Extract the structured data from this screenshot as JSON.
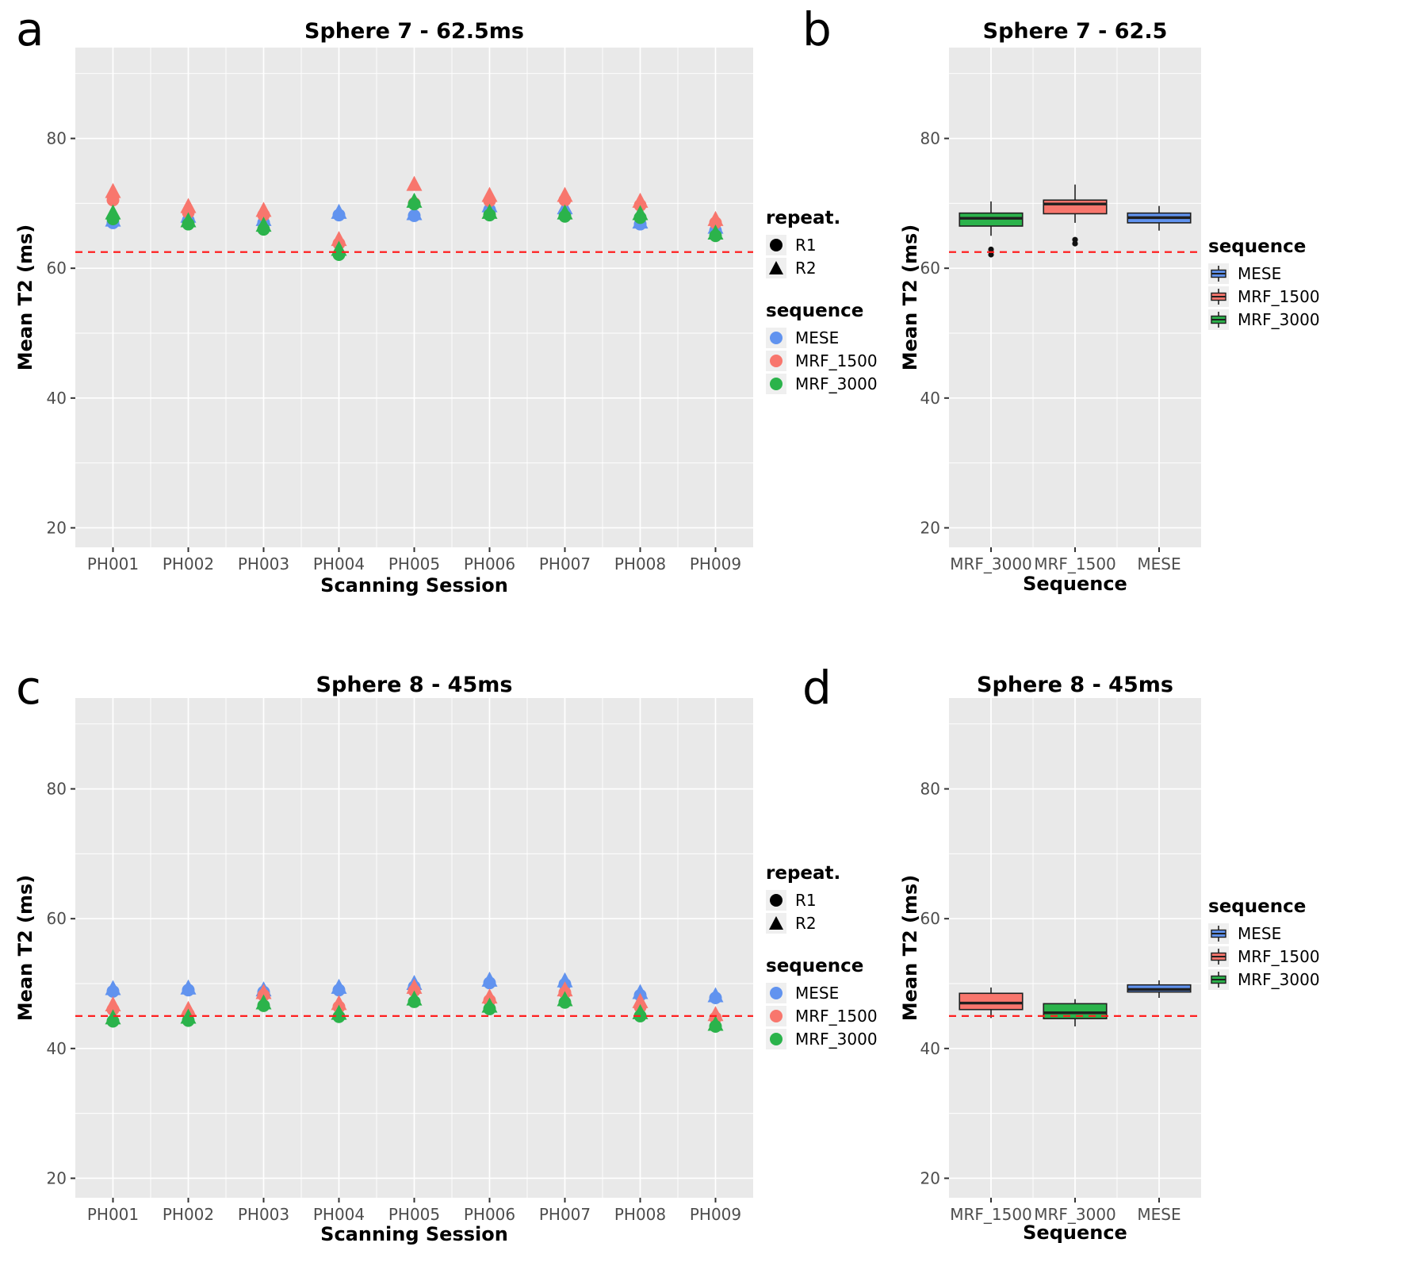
{
  "style": {
    "panel_bg": "#E9E9E9",
    "grid_major": "#FFFFFF",
    "grid_minor": "#FFFFFF",
    "ref_line_color": "#FF1F1F",
    "tick_label_color": "#4D4D4D",
    "axis_tick_color": "#333333",
    "legend_key_bg": "#EFEFEF",
    "box_stroke": "#1F1F1F"
  },
  "colors": {
    "MESE": "#6193EF",
    "MRF_1500": "#F8766D",
    "MRF_3000": "#2BB34B"
  },
  "panels": [
    {
      "letter": "a",
      "title": "Sphere 7 - 62.5ms",
      "xlabel": "Scanning Session",
      "ylabel": "Mean T2 (ms)"
    },
    {
      "letter": "b",
      "title": "Sphere 7 - 62.5",
      "xlabel": "Sequence",
      "ylabel": "Mean T2 (ms)"
    },
    {
      "letter": "c",
      "title": "Sphere 8 - 45ms",
      "xlabel": "Scanning Session",
      "ylabel": "Mean T2 (ms)"
    },
    {
      "letter": "d",
      "title": "Sphere 8 - 45ms",
      "xlabel": "Sequence",
      "ylabel": "Mean T2 (ms)"
    }
  ],
  "legends": {
    "scatter": {
      "repeat_title": "repeat.",
      "repeat_items": [
        {
          "label": "R1",
          "shape": "circle"
        },
        {
          "label": "R2",
          "shape": "triangle"
        }
      ],
      "sequence_title": "sequence",
      "sequence_items": [
        {
          "label": "MESE"
        },
        {
          "label": "MRF_1500"
        },
        {
          "label": "MRF_3000"
        }
      ]
    },
    "box": {
      "title": "sequence",
      "items": [
        {
          "label": "MESE"
        },
        {
          "label": "MRF_1500"
        },
        {
          "label": "MRF_3000"
        }
      ]
    }
  },
  "chart_data": [
    {
      "panel": "a",
      "type": "scatter",
      "title": "Sphere 7 - 62.5ms",
      "xlabel": "Scanning Session",
      "ylabel": "Mean T2 (ms)",
      "categories": [
        "PH001",
        "PH002",
        "PH003",
        "PH004",
        "PH005",
        "PH006",
        "PH007",
        "PH008",
        "PH009"
      ],
      "ylim": [
        17,
        94
      ],
      "yticks": [
        20,
        40,
        60,
        80
      ],
      "reference_line": 62.5,
      "grid": true,
      "legend_position": "right",
      "series": [
        {
          "name": "MESE",
          "R1": [
            67.0,
            67.4,
            67.0,
            68.2,
            68.1,
            69.0,
            68.5,
            66.8,
            65.8
          ],
          "R2": [
            67.4,
            68.0,
            67.5,
            68.6,
            68.4,
            69.6,
            69.3,
            67.1,
            66.3
          ]
        },
        {
          "name": "MRF_1500",
          "R1": [
            70.5,
            68.6,
            68.2,
            63.8,
            70.0,
            70.4,
            70.5,
            69.7,
            67.0
          ],
          "R2": [
            71.8,
            69.5,
            68.9,
            64.4,
            72.9,
            71.2,
            71.2,
            70.3,
            67.5
          ]
        },
        {
          "name": "MRF_3000",
          "R1": [
            67.6,
            66.8,
            66.0,
            62.1,
            69.9,
            68.2,
            68.0,
            67.8,
            65.0
          ],
          "R2": [
            68.5,
            67.3,
            66.6,
            62.9,
            70.3,
            68.6,
            68.5,
            68.4,
            65.4
          ]
        }
      ]
    },
    {
      "panel": "b",
      "type": "box",
      "title": "Sphere 7 - 62.5",
      "xlabel": "Sequence",
      "ylabel": "Mean T2 (ms)",
      "categories": [
        "MRF_3000",
        "MRF_1500",
        "MESE"
      ],
      "ylim": [
        17,
        94
      ],
      "yticks": [
        20,
        40,
        60,
        80
      ],
      "reference_line": 62.5,
      "grid": true,
      "legend_position": "right",
      "boxes": [
        {
          "name": "MRF_3000",
          "whisker_low": 65.0,
          "q1": 66.5,
          "median": 67.7,
          "q3": 68.5,
          "whisker_high": 70.3,
          "outliers": [
            62.1,
            62.9
          ]
        },
        {
          "name": "MRF_1500",
          "whisker_low": 67.0,
          "q1": 68.4,
          "median": 69.9,
          "q3": 70.5,
          "whisker_high": 72.9,
          "outliers": [
            63.8,
            64.4
          ]
        },
        {
          "name": "MESE",
          "whisker_low": 65.8,
          "q1": 67.0,
          "median": 67.8,
          "q3": 68.5,
          "whisker_high": 69.6,
          "outliers": []
        }
      ]
    },
    {
      "panel": "c",
      "type": "scatter",
      "title": "Sphere 8 - 45ms",
      "xlabel": "Scanning Session",
      "ylabel": "Mean T2 (ms)",
      "categories": [
        "PH001",
        "PH002",
        "PH003",
        "PH004",
        "PH005",
        "PH006",
        "PH007",
        "PH008",
        "PH009"
      ],
      "ylim": [
        17,
        94
      ],
      "yticks": [
        20,
        40,
        60,
        80
      ],
      "reference_line": 45,
      "grid": true,
      "legend_position": "right",
      "series": [
        {
          "name": "MESE",
          "R1": [
            48.8,
            49.0,
            48.7,
            49.0,
            49.5,
            50.1,
            49.9,
            48.2,
            47.8
          ],
          "R2": [
            49.2,
            49.3,
            49.0,
            49.4,
            50.0,
            50.5,
            50.4,
            48.6,
            48.1
          ]
        },
        {
          "name": "MRF_1500",
          "R1": [
            46.0,
            45.3,
            48.2,
            46.4,
            48.9,
            47.4,
            48.6,
            46.4,
            44.7
          ],
          "R2": [
            46.7,
            46.0,
            48.6,
            46.9,
            49.4,
            47.9,
            49.0,
            47.2,
            45.2
          ]
        },
        {
          "name": "MRF_3000",
          "R1": [
            44.2,
            44.3,
            46.6,
            44.9,
            47.2,
            46.1,
            47.1,
            45.0,
            43.4
          ],
          "R2": [
            44.7,
            44.8,
            47.0,
            45.4,
            47.6,
            46.5,
            47.5,
            45.5,
            43.7
          ]
        }
      ]
    },
    {
      "panel": "d",
      "type": "box",
      "title": "Sphere 8 - 45ms",
      "xlabel": "Sequence",
      "ylabel": "Mean T2 (ms)",
      "categories": [
        "MRF_1500",
        "MRF_3000",
        "MESE"
      ],
      "ylim": [
        17,
        94
      ],
      "yticks": [
        20,
        40,
        60,
        80
      ],
      "reference_line": 45,
      "grid": true,
      "legend_position": "right",
      "boxes": [
        {
          "name": "MRF_1500",
          "whisker_low": 44.7,
          "q1": 46.0,
          "median": 47.0,
          "q3": 48.5,
          "whisker_high": 49.4,
          "outliers": []
        },
        {
          "name": "MRF_3000",
          "whisker_low": 43.4,
          "q1": 44.6,
          "median": 45.5,
          "q3": 46.9,
          "whisker_high": 47.6,
          "outliers": []
        },
        {
          "name": "MESE",
          "whisker_low": 47.8,
          "q1": 48.7,
          "median": 49.1,
          "q3": 49.8,
          "whisker_high": 50.5,
          "outliers": []
        }
      ]
    }
  ]
}
